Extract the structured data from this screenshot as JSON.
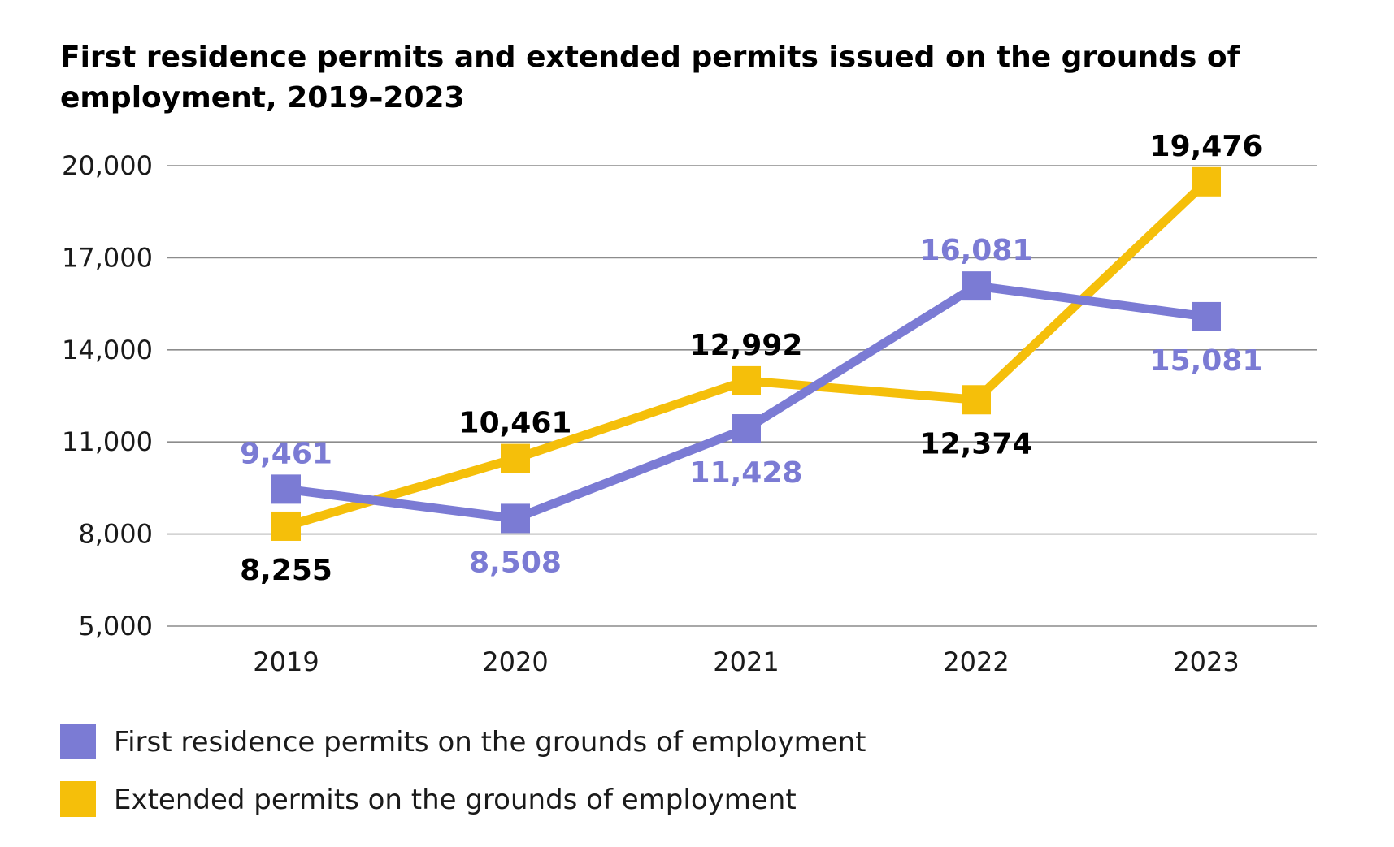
{
  "chart_data": {
    "type": "line",
    "title": "First residence permits and extended permits issued on the grounds of employment, 2019–2023",
    "xlabel": "",
    "ylabel": "",
    "categories": [
      "2019",
      "2020",
      "2021",
      "2022",
      "2023"
    ],
    "ylim": [
      5000,
      20000
    ],
    "yticks": [
      5000,
      8000,
      11000,
      14000,
      17000,
      20000
    ],
    "ytick_labels": [
      "5,000",
      "8,000",
      "11,000",
      "14,000",
      "17,000",
      "20,000"
    ],
    "grid": true,
    "legend_position": "bottom-left",
    "series": [
      {
        "name": "First residence permits on the grounds of employment",
        "color": "#7b7bd4",
        "label_color": "#7b7bd4",
        "values": [
          9461,
          8508,
          11428,
          16081,
          15081
        ],
        "labels": [
          "9,461",
          "8,508",
          "11,428",
          "16,081",
          "15,081"
        ],
        "label_positions": [
          "above",
          "below",
          "below",
          "above",
          "below"
        ]
      },
      {
        "name": "Extended permits on the grounds of employment",
        "color": "#f5bf0a",
        "label_color": "#000000",
        "values": [
          8255,
          10461,
          12992,
          12374,
          19476
        ],
        "labels": [
          "8,255",
          "10,461",
          "12,992",
          "12,374",
          "19,476"
        ],
        "label_positions": [
          "below",
          "above",
          "above",
          "below",
          "above"
        ]
      }
    ]
  }
}
